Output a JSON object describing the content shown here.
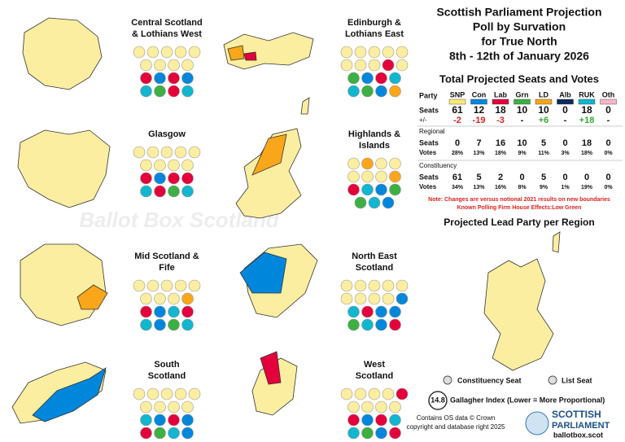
{
  "title": [
    "Scottish Parliament Projection",
    "Poll by Survation",
    "for True North",
    "8th - 12th of January 2026"
  ],
  "watermark": "Ballot Box Scotland",
  "regions": [
    {
      "name": [
        "Central Scotland",
        "& Lothians West"
      ]
    },
    {
      "name": [
        "Edinburgh &",
        "Lothians East"
      ]
    },
    {
      "name": [
        "Glasgow"
      ]
    },
    {
      "name": [
        "Highlands &",
        "Islands"
      ]
    },
    {
      "name": [
        "Mid Scotland &",
        "Fife"
      ]
    },
    {
      "name": [
        "North East",
        "Scotland"
      ]
    },
    {
      "name": [
        "South",
        "Scotland"
      ]
    },
    {
      "name": [
        "West",
        "Scotland"
      ]
    }
  ],
  "table": {
    "title": "Total Projected Seats and Votes",
    "party_header": "Party",
    "parties": [
      "SNP",
      "Con",
      "Lab",
      "Grn",
      "LD",
      "Alb",
      "RUK",
      "Oth"
    ],
    "colors": [
      "#fbe87a",
      "#0087dc",
      "#e4003b",
      "#3cb043",
      "#faa61a",
      "#0a2b5c",
      "#12b6cf",
      "#f8b4c8"
    ],
    "total": {
      "seats_label": "Seats",
      "seats": [
        61,
        12,
        18,
        10,
        10,
        0,
        18,
        0
      ],
      "change_label": "+/-",
      "change": [
        "-2",
        "-19",
        "-3",
        "-",
        "+6",
        "-",
        "+18",
        "-"
      ]
    },
    "regional": {
      "label": "Regional",
      "seats_label": "Seats",
      "seats": [
        0,
        7,
        16,
        10,
        5,
        0,
        18,
        0
      ],
      "votes_label": "Votes",
      "votes": [
        "28%",
        "13%",
        "18%",
        "9%",
        "11%",
        "3%",
        "18%",
        "0%"
      ]
    },
    "constituency": {
      "label": "Constituency",
      "seats_label": "Seats",
      "seats": [
        61,
        5,
        2,
        0,
        5,
        0,
        0,
        0
      ],
      "votes_label": "Votes",
      "votes": [
        "34%",
        "13%",
        "16%",
        "8%",
        "9%",
        "1%",
        "19%",
        "0%"
      ]
    }
  },
  "notes": [
    "Note: Changes are versus notional 2021 results on new boundaries",
    "Known Polling Firm House Effects:Low Green"
  ],
  "lead_map_title": "Projected Lead Party per Region",
  "legend": {
    "constituency": "Constituency Seat",
    "list": "List Seat"
  },
  "gallagher": {
    "value": "14.8",
    "label": "Gallagher Index (Lower = More Proportional)"
  },
  "credits": [
    "Contains OS data © Crown",
    "copyright and database right 2025"
  ],
  "logo": {
    "line1": "SCOTTISH",
    "line2": "PARLIAMENT",
    "url": "ballotbox.scot"
  }
}
